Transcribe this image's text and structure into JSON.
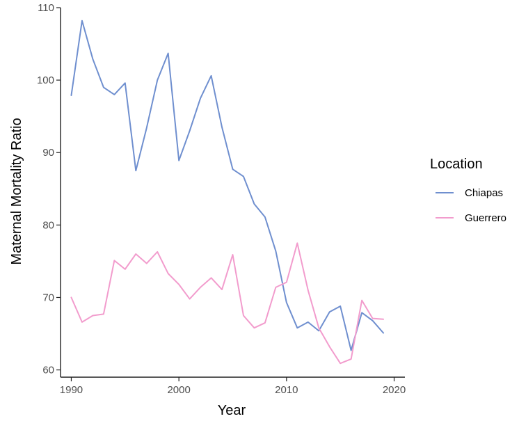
{
  "chart_data": {
    "type": "line",
    "title": "",
    "xlabel": "Year",
    "ylabel": "Maternal Mortality Ratio",
    "xlim": [
      1989,
      2021
    ],
    "ylim": [
      59,
      110
    ],
    "x_ticks": [
      1990,
      2000,
      2010,
      2020
    ],
    "y_ticks": [
      60,
      70,
      80,
      90,
      100,
      110
    ],
    "grid": false,
    "legend": {
      "title": "Location",
      "placement": "right"
    },
    "x": [
      1990,
      1991,
      1992,
      1993,
      1994,
      1995,
      1996,
      1997,
      1998,
      1999,
      2000,
      2001,
      2002,
      2003,
      2004,
      2005,
      2006,
      2007,
      2008,
      2009,
      2010,
      2011,
      2012,
      2013,
      2014,
      2015,
      2016,
      2017,
      2018,
      2019
    ],
    "series": [
      {
        "name": "Chiapas",
        "color": "#6f8fcf",
        "values": [
          97.9,
          108.2,
          102.9,
          99.0,
          98.0,
          99.6,
          87.5,
          93.4,
          100.0,
          103.7,
          88.9,
          93.0,
          97.5,
          100.6,
          93.5,
          87.7,
          86.7,
          82.9,
          81.1,
          76.4,
          69.3,
          65.8,
          66.6,
          65.4,
          68.0,
          68.8,
          62.7,
          67.9,
          66.8,
          65.1
        ]
      },
      {
        "name": "Guerrero",
        "color": "#f29ccd",
        "values": [
          70.0,
          66.6,
          67.5,
          67.7,
          75.1,
          73.9,
          76.0,
          74.7,
          76.3,
          73.3,
          71.8,
          69.8,
          71.4,
          72.7,
          71.1,
          75.9,
          67.5,
          65.8,
          66.5,
          71.4,
          72.1,
          77.5,
          71.0,
          65.8,
          63.2,
          60.9,
          61.5,
          69.6,
          67.1,
          67.0
        ]
      }
    ]
  }
}
